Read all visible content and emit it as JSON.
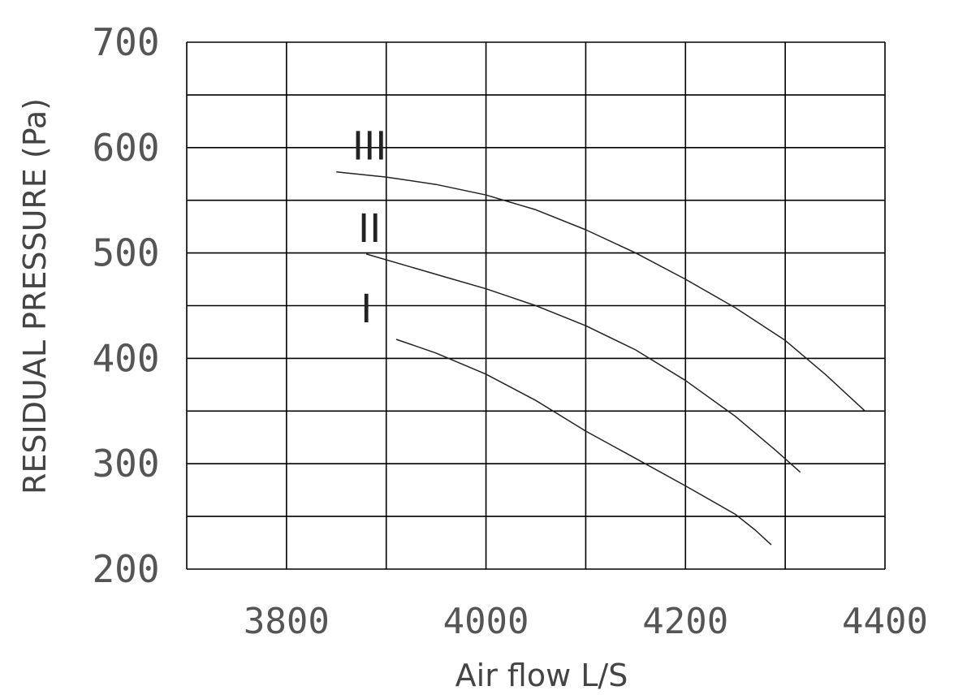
{
  "chart_data": {
    "type": "line",
    "title": "",
    "xlabel": "Air flow  L/S",
    "ylabel": "RESIDUAL PRESSURE (Pa)",
    "xlim": [
      3700,
      4400
    ],
    "ylim": [
      200,
      700
    ],
    "x_ticks": [
      3800,
      4000,
      4200,
      4400
    ],
    "y_ticks": [
      200,
      300,
      400,
      500,
      600,
      700
    ],
    "x_grid_step": 100,
    "y_grid_step": 50,
    "grid": true,
    "legend": "none",
    "series": [
      {
        "name": "III",
        "x": [
          3850,
          3900,
          3950,
          4000,
          4050,
          4100,
          4150,
          4200,
          4250,
          4300,
          4340,
          4380
        ],
        "y": [
          577,
          572,
          565,
          555,
          541,
          522,
          500,
          475,
          448,
          417,
          385,
          350
        ]
      },
      {
        "name": "II",
        "x": [
          3880,
          3920,
          3960,
          4000,
          4050,
          4100,
          4150,
          4200,
          4250,
          4290,
          4315
        ],
        "y": [
          499,
          488,
          477,
          466,
          450,
          431,
          408,
          379,
          345,
          313,
          292
        ]
      },
      {
        "name": "I",
        "x": [
          3910,
          3950,
          4000,
          4050,
          4100,
          4150,
          4200,
          4250,
          4270,
          4286
        ],
        "y": [
          418,
          405,
          385,
          360,
          331,
          305,
          279,
          252,
          237,
          223
        ]
      }
    ]
  }
}
